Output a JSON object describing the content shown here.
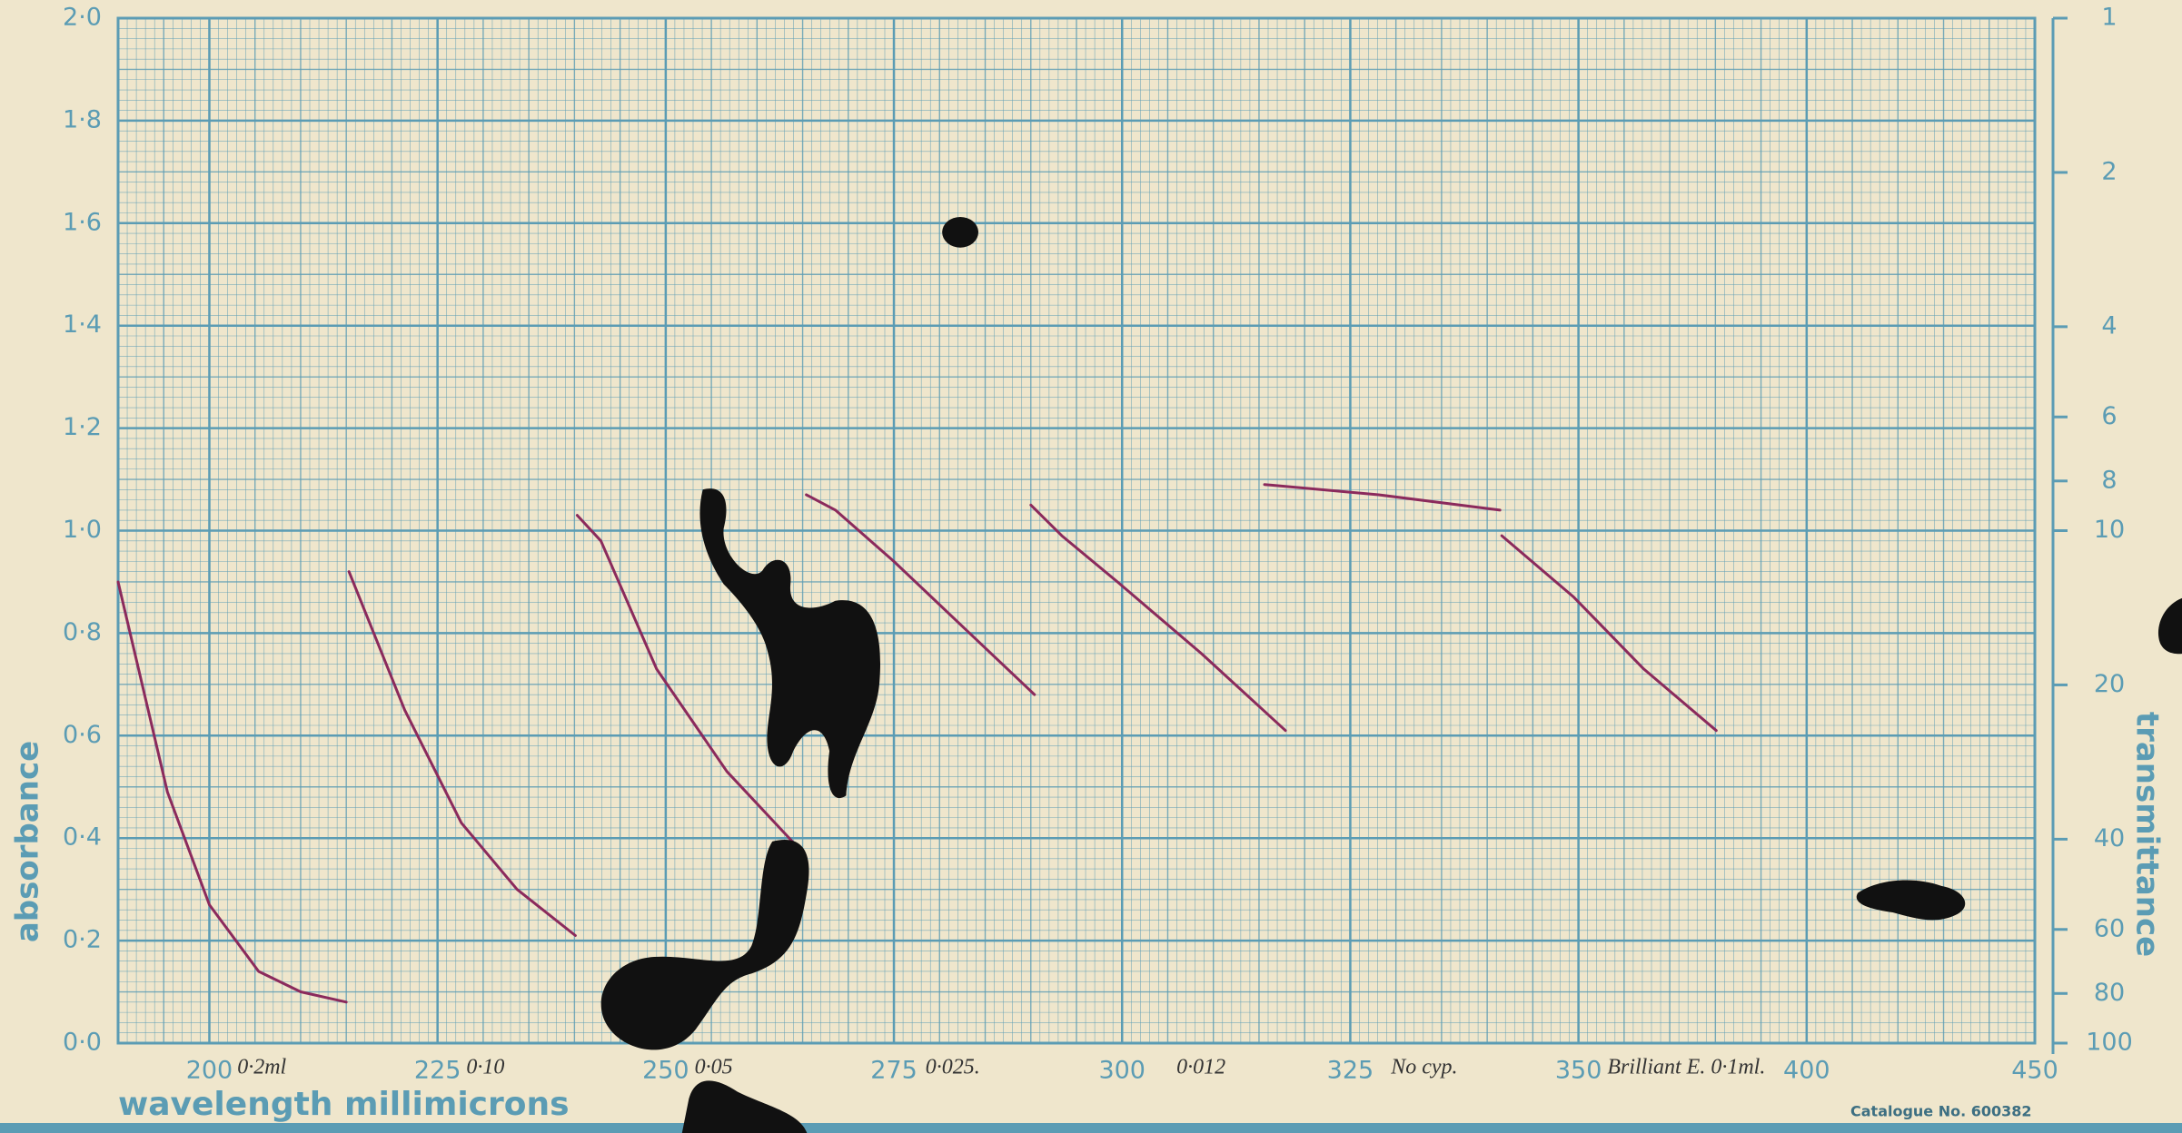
{
  "chart_data": {
    "type": "line",
    "xlabel": "wavelength millimicrons",
    "ylabel": "absorbance",
    "y2label": "transmittance",
    "footer": "Catalogue No. 600382",
    "x_scale": "piecewise-linear",
    "xlim": [
      190,
      450
    ],
    "xticks": [
      200,
      225,
      250,
      275,
      300,
      325,
      350,
      400,
      450
    ],
    "ylim": [
      0,
      2
    ],
    "yticks": [
      {
        "value": 0,
        "label": "0·0"
      },
      {
        "value": 0.2,
        "label": "0·2"
      },
      {
        "value": 0.4,
        "label": "0·4"
      },
      {
        "value": 0.6,
        "label": "0·6"
      },
      {
        "value": 0.8,
        "label": "0·8"
      },
      {
        "value": 1,
        "label": "1·0"
      },
      {
        "value": 1.2,
        "label": "1·2"
      },
      {
        "value": 1.4,
        "label": "1·4"
      },
      {
        "value": 1.6,
        "label": "1·6"
      },
      {
        "value": 1.8,
        "label": "1·8"
      },
      {
        "value": 2,
        "label": "2·0"
      }
    ],
    "y2_scale": "log",
    "y2lim": [
      100,
      1
    ],
    "y2ticks": [
      1,
      2,
      4,
      6,
      8,
      10,
      20,
      40,
      60,
      80,
      100
    ],
    "grid": true,
    "series": [
      {
        "name": "0·2ml",
        "color": "#8b2a5c",
        "x": [
          190.0,
          195.4,
          200,
          205.4,
          210.0,
          215.0
        ],
        "values": [
          0.9,
          0.49,
          0.27,
          0.14,
          0.1,
          0.08
        ]
      },
      {
        "name": "0·10",
        "color": "#8b2a5c",
        "x": [
          215.3,
          221.4,
          227.6,
          233.7,
          240.1
        ],
        "values": [
          0.92,
          0.65,
          0.43,
          0.3,
          0.21
        ]
      },
      {
        "name": "0·05",
        "color": "#8b2a5c",
        "x": [
          240.3,
          242.9,
          249.0,
          256.7,
          265.1
        ],
        "values": [
          1.03,
          0.98,
          0.73,
          0.53,
          0.37
        ]
      },
      {
        "name": "0·025.",
        "color": "#8b2a5c",
        "x": [
          265.4,
          268.6,
          275.0,
          282.7,
          290.4
        ],
        "values": [
          1.07,
          1.04,
          0.94,
          0.81,
          0.68
        ]
      },
      {
        "name": "0·012",
        "color": "#8b2a5c",
        "x": [
          290.0,
          293.4,
          299.5,
          308.7,
          317.9
        ],
        "values": [
          1.05,
          0.99,
          0.9,
          0.76,
          0.61
        ]
      },
      {
        "name": "No cyp.",
        "color": "#8b2a5c",
        "x": [
          315.6,
          328.1,
          341.4
        ],
        "values": [
          1.09,
          1.07,
          1.04
        ]
      },
      {
        "name": "Brilliant E. 0·1ml.",
        "color": "#8b2a5c",
        "x": [
          341.6,
          349.5,
          364.3,
          380.2
        ],
        "values": [
          0.99,
          0.87,
          0.73,
          0.61
        ]
      }
    ]
  }
}
